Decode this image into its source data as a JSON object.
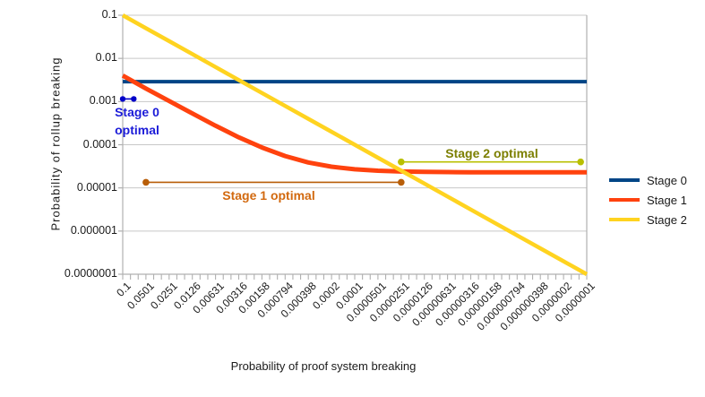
{
  "chart_data": {
    "type": "line",
    "title": "",
    "xlabel": "Probability of proof system breaking",
    "ylabel": "Probability of rollup breaking",
    "x_scale": "log",
    "y_scale": "log",
    "x_range": [
      0.1,
      1e-07
    ],
    "y_range": [
      1e-07,
      0.1
    ],
    "grid": "horizontal",
    "legend_position": "right",
    "x_tick_labels": [
      "0.1",
      "0.0501",
      "0.0251",
      "0.0126",
      "0.00631",
      "0.00316",
      "0.00158",
      "0.000794",
      "0.000398",
      "0.0002",
      "0.0001",
      "0.0000501",
      "0.0000251",
      "0.0000126",
      "0.00000631",
      "0.00000316",
      "0.00000158",
      "0.000000794",
      "0.000000398",
      "0.0000002",
      "0.0000001"
    ],
    "y_tick_labels": [
      "0.1",
      "0.01",
      "0.001",
      "0.0001",
      "0.00001",
      "0.000001",
      "0.0000001"
    ],
    "x": [
      0.1,
      0.0501,
      0.0251,
      0.0126,
      0.00631,
      0.00316,
      0.00158,
      0.000794,
      0.000398,
      0.0002,
      0.0001,
      5.01e-05,
      2.51e-05,
      1.26e-05,
      6.31e-06,
      3.16e-06,
      1.58e-06,
      7.94e-07,
      3.98e-07,
      2e-07,
      1e-07
    ],
    "series": [
      {
        "name": "Stage 0",
        "color": "#004586",
        "stroke_width": 4,
        "y": [
          0.0029,
          0.0029,
          0.0029,
          0.0029,
          0.0029,
          0.0029,
          0.0029,
          0.0029,
          0.0029,
          0.0029,
          0.0029,
          0.0029,
          0.0029,
          0.0029,
          0.0029,
          0.0029,
          0.0029,
          0.0029,
          0.0029,
          0.0029,
          0.0029
        ]
      },
      {
        "name": "Stage 1",
        "color": "#ff420e",
        "stroke_width": 5,
        "y": [
          0.004,
          0.002,
          0.00103,
          0.00053,
          0.000275,
          0.000149,
          8.62e-05,
          5.48e-05,
          3.89e-05,
          3.1e-05,
          2.7e-05,
          2.5e-05,
          2.4e-05,
          2.35e-05,
          2.33e-05,
          2.31e-05,
          2.31e-05,
          2.3e-05,
          2.3e-05,
          2.3e-05,
          2.3e-05
        ]
      },
      {
        "name": "Stage 2",
        "color": "#ffd320",
        "stroke_width": 4.5,
        "y": [
          0.1,
          0.0501,
          0.0251,
          0.0126,
          0.00631,
          0.00316,
          0.00158,
          0.000794,
          0.000398,
          0.0002,
          0.0001,
          5.01e-05,
          2.51e-05,
          1.26e-05,
          6.31e-06,
          3.16e-06,
          1.58e-06,
          7.94e-07,
          3.98e-07,
          2e-07,
          1e-07
        ]
      }
    ],
    "annotations": [
      {
        "label": "Stage 0 optimal",
        "display": [
          "Stage 0",
          "optimal"
        ],
        "x1": 0.1,
        "x2": 0.072,
        "y": 0.00115,
        "line_color": "#0000c8",
        "text_color": "#1b1bd8",
        "dot_radius": 3.2
      },
      {
        "label": "Stage 1 optimal",
        "display": [
          "Stage 1 optimal"
        ],
        "x1": 0.0501,
        "x2": 2.51e-05,
        "y": 1.35e-05,
        "line_color": "#b85e08",
        "text_color": "#d2690f",
        "dot_radius": 3.8
      },
      {
        "label": "Stage 2 optimal",
        "display": [
          "Stage 2 optimal"
        ],
        "x1": 2.51e-05,
        "x2": 1.2e-07,
        "y": 4e-05,
        "line_color": "#b9bf00",
        "text_color": "#7c7f00",
        "dot_radius": 3.8
      }
    ],
    "colors": {
      "gridline": "#c8c8c8",
      "axis": "#b0b0b0",
      "text": "#1a1a1a"
    }
  },
  "legend": {
    "items": [
      {
        "label": "Stage 0",
        "color": "#004586"
      },
      {
        "label": "Stage 1",
        "color": "#ff420e"
      },
      {
        "label": "Stage 2",
        "color": "#ffd320"
      }
    ]
  }
}
